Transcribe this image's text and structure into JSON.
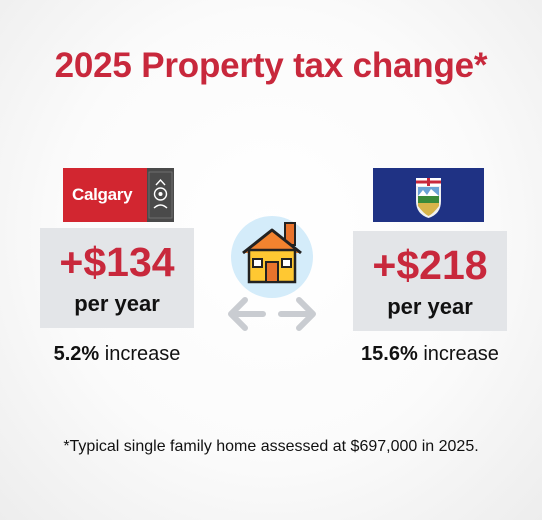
{
  "title": "2025 Property tax change*",
  "calgary": {
    "logo_text": "Calgary",
    "amount": "+$134",
    "period": "per year",
    "percent": "5.2%",
    "increase_word": "increase"
  },
  "alberta": {
    "amount": "+$218",
    "period": "per year",
    "percent": "15.6%",
    "increase_word": "increase"
  },
  "center_icon": "house-with-bidirectional-arrows-icon",
  "footnote": "*Typical single family home assessed at $697,000 in 2025.",
  "colors": {
    "title_red": "#c8283c",
    "calgary_red": "#d22630",
    "alberta_blue": "#1f3284",
    "card_gray": "#e3e5e8"
  }
}
